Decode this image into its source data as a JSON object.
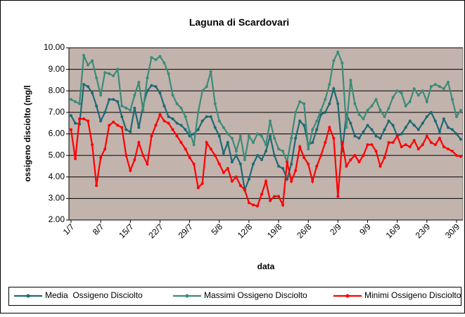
{
  "chart_data": {
    "type": "line",
    "title": "Laguna di Scardovari",
    "x_label": "data",
    "y_label": "ossigeno disciolto (mg/l",
    "categories": [
      "1/7",
      null,
      null,
      null,
      null,
      null,
      null,
      "8/7",
      null,
      null,
      null,
      null,
      null,
      null,
      "15/7",
      null,
      null,
      null,
      null,
      null,
      null,
      "22/7",
      null,
      null,
      null,
      null,
      null,
      null,
      "29/7",
      null,
      null,
      null,
      null,
      null,
      null,
      "5/8",
      null,
      null,
      null,
      null,
      null,
      null,
      "12/8",
      null,
      null,
      null,
      null,
      null,
      null,
      "19/8",
      null,
      null,
      null,
      null,
      null,
      null,
      "26/8",
      null,
      null,
      null,
      null,
      null,
      null,
      "2/9",
      null,
      null,
      null,
      null,
      null,
      null,
      "9/9",
      null,
      null,
      null,
      null,
      null,
      null,
      "16/9",
      null,
      null,
      null,
      null,
      null,
      null,
      "23/9",
      null,
      null,
      null,
      null,
      null,
      null,
      "30/9",
      null
    ],
    "ylim": [
      2,
      10
    ],
    "yticks": [
      {
        "value": 2,
        "label": "2.00"
      },
      {
        "value": 3,
        "label": "3.00"
      },
      {
        "value": 4,
        "label": "4.00"
      },
      {
        "value": 5,
        "label": "5.00"
      },
      {
        "value": 6,
        "label": "6.00"
      },
      {
        "value": 7,
        "label": "7.00"
      },
      {
        "value": 8,
        "label": "8.00"
      },
      {
        "value": 9,
        "label": "9.00"
      },
      {
        "value": 10,
        "label": "10.00"
      }
    ],
    "grid": true,
    "legend": "bottom",
    "background": "#c3b3ad",
    "series": [
      {
        "name": "Media  Ossigeno Disciolto",
        "color": "#1c6a74",
        "values": [
          6.85,
          6.5,
          6.45,
          8.3,
          8.2,
          7.9,
          7.3,
          6.6,
          7.0,
          7.6,
          7.6,
          7.5,
          6.8,
          6.2,
          6.1,
          7.2,
          6.3,
          7.3,
          8.0,
          8.25,
          8.2,
          7.9,
          7.3,
          6.8,
          6.7,
          6.5,
          6.4,
          6.2,
          5.9,
          6.0,
          6.2,
          6.6,
          6.8,
          6.8,
          6.3,
          5.9,
          5.1,
          5.6,
          4.7,
          5.0,
          4.6,
          3.4,
          3.9,
          4.6,
          5.0,
          4.8,
          5.2,
          5.9,
          5.0,
          4.5,
          4.4,
          3.9,
          4.6,
          5.8,
          6.6,
          6.4,
          5.5,
          5.6,
          6.2,
          6.9,
          7.0,
          7.4,
          8.1,
          7.4,
          5.2,
          6.9,
          6.5,
          5.9,
          5.8,
          6.1,
          6.4,
          6.2,
          5.9,
          5.8,
          6.2,
          6.6,
          6.4,
          5.9,
          6.0,
          6.3,
          6.6,
          6.4,
          6.2,
          6.5,
          6.8,
          7.0,
          6.6,
          6.1,
          6.7,
          6.3,
          6.2,
          6.0,
          5.75
        ]
      },
      {
        "name": "Massimi Ossigeno Disciolto",
        "color": "#3a8c78",
        "values": [
          7.6,
          7.5,
          7.4,
          9.65,
          9.2,
          9.4,
          8.6,
          7.8,
          8.85,
          8.8,
          8.7,
          9.0,
          7.3,
          7.2,
          7.1,
          7.8,
          8.4,
          7.1,
          8.6,
          9.55,
          9.45,
          9.6,
          9.3,
          8.8,
          7.8,
          7.4,
          7.2,
          6.8,
          6.1,
          5.5,
          7.0,
          8.0,
          8.2,
          8.9,
          7.4,
          6.6,
          6.3,
          6.0,
          5.8,
          5.2,
          5.9,
          4.8,
          5.9,
          5.6,
          6.0,
          5.9,
          5.5,
          6.6,
          5.8,
          5.3,
          5.2,
          4.7,
          5.8,
          7.0,
          7.5,
          7.4,
          5.3,
          6.2,
          6.6,
          7.1,
          7.6,
          8.3,
          9.4,
          9.8,
          9.3,
          6.3,
          8.5,
          7.4,
          6.9,
          6.7,
          7.1,
          7.3,
          7.6,
          7.1,
          6.8,
          7.2,
          7.7,
          8.0,
          7.9,
          7.3,
          7.5,
          8.1,
          7.8,
          8.0,
          7.5,
          8.2,
          8.3,
          8.2,
          8.1,
          8.4,
          7.6,
          6.8,
          7.1
        ]
      },
      {
        "name": "Minimi Ossigeno Disciolto",
        "color": "#ff0000",
        "values": [
          6.2,
          4.85,
          6.7,
          6.7,
          6.6,
          5.5,
          3.6,
          4.9,
          5.3,
          6.4,
          6.55,
          6.4,
          6.3,
          5.0,
          4.3,
          4.8,
          5.6,
          5.0,
          4.6,
          5.9,
          6.4,
          6.9,
          6.6,
          6.5,
          6.2,
          5.9,
          5.6,
          5.3,
          4.9,
          4.6,
          3.5,
          3.7,
          5.6,
          5.3,
          5.0,
          4.6,
          4.2,
          4.4,
          3.8,
          4.0,
          3.6,
          3.4,
          2.8,
          2.7,
          2.65,
          3.2,
          3.8,
          2.9,
          3.1,
          3.1,
          2.7,
          4.7,
          3.8,
          4.3,
          5.4,
          4.9,
          4.6,
          3.8,
          4.5,
          5.0,
          5.6,
          6.3,
          5.8,
          3.1,
          5.6,
          4.5,
          4.8,
          5.0,
          4.7,
          5.0,
          5.5,
          5.5,
          5.2,
          4.5,
          4.9,
          5.6,
          5.6,
          5.9,
          5.4,
          5.5,
          5.4,
          5.7,
          5.3,
          5.5,
          5.9,
          5.6,
          5.5,
          5.8,
          5.4,
          5.3,
          5.2,
          5.0,
          4.95
        ]
      }
    ]
  }
}
